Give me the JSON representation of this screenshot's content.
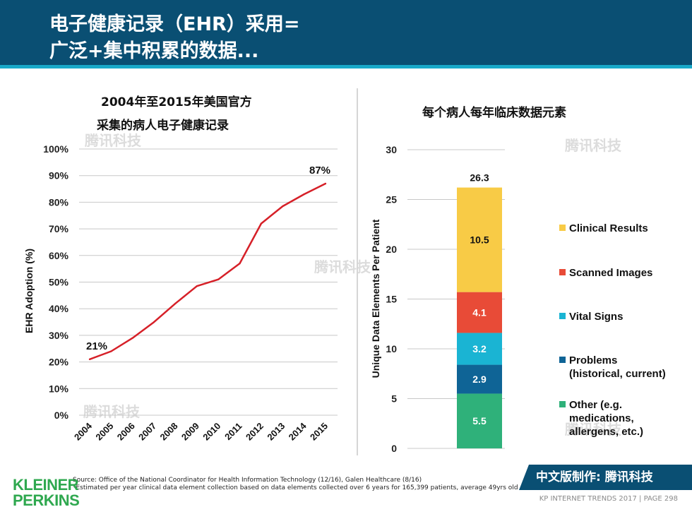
{
  "header": {
    "title_line1": "电子健康记录（EHR）采用=",
    "title_line2": "广泛+集中积累的数据..."
  },
  "left_chart": {
    "title_line1": "2004年至2015年美国官方",
    "title_line2": "采集的病人电子健康记录"
  },
  "right_chart": {
    "title": "每个病人每年临床数据元素"
  },
  "watermark_text": "腾讯科技",
  "chart_data": [
    {
      "type": "line",
      "title": "2004年至2015年美国官方采集的病人电子健康记录",
      "ylabel": "EHR Adoption (%)",
      "xlabel": "",
      "ylim": [
        0,
        100
      ],
      "yticks": [
        "0%",
        "10%",
        "20%",
        "30%",
        "40%",
        "50%",
        "60%",
        "70%",
        "80%",
        "90%",
        "100%"
      ],
      "x": [
        "2004",
        "2005",
        "2006",
        "2007",
        "2008",
        "2009",
        "2010",
        "2011",
        "2012",
        "2013",
        "2014",
        "2015"
      ],
      "series": [
        {
          "values": [
            21,
            24,
            29,
            35,
            42,
            48.5,
            51,
            57,
            72,
            78.5,
            83,
            87
          ],
          "color": "#d62028"
        }
      ],
      "annotations": [
        {
          "label": "21%",
          "x": "2004"
        },
        {
          "label": "87%",
          "x": "2015"
        }
      ],
      "grid": true
    },
    {
      "type": "bar",
      "stacked": true,
      "title": "每个病人每年临床数据元素",
      "ylabel": "Unique Data Elements Per Patient",
      "ylim": [
        0,
        30
      ],
      "yticks": [
        "0",
        "5",
        "10",
        "15",
        "20",
        "25",
        "30"
      ],
      "total_label": "26.3",
      "series": [
        {
          "name": "Other (e.g. medications, allergens, etc.)",
          "value": 5.5,
          "label": "5.5",
          "color": "#2fb17a"
        },
        {
          "name": "Problems (historical, current)",
          "value": 2.9,
          "label": "2.9",
          "color": "#0f6496"
        },
        {
          "name": "Vital Signs",
          "value": 3.2,
          "label": "3.2",
          "color": "#1ab4d3"
        },
        {
          "name": "Scanned Images",
          "value": 4.1,
          "label": "4.1",
          "color": "#e84b37"
        },
        {
          "name": "Clinical Results",
          "value": 10.5,
          "label": "10.5",
          "color": "#f8cb46"
        }
      ],
      "legend": [
        {
          "lines": [
            "Clinical Results"
          ],
          "color": "#f8cb46"
        },
        {
          "lines": [
            "Scanned Images"
          ],
          "color": "#e84b37"
        },
        {
          "lines": [
            "Vital Signs"
          ],
          "color": "#1ab4d3"
        },
        {
          "lines": [
            "Problems",
            "(historical, current)"
          ],
          "color": "#0f6496"
        },
        {
          "lines": [
            "Other (e.g.",
            "medications,",
            "allergens, etc.)"
          ],
          "color": "#2fb17a"
        }
      ],
      "grid": true
    }
  ],
  "source": {
    "line1": "Source: Office of the National Coordinator for Health Information Technology (12/16), Galen Healthcare (8/16)",
    "line2": "*Estimated per year clinical data element collection based on data elements collected over 6 years for 165,399 patients, average 49yrs old"
  },
  "logo": {
    "line1": "KLEINER",
    "line2": "PERKINS"
  },
  "badge": {
    "text": "中文版制作: 腾讯科技"
  },
  "footer": {
    "text": "KP INTERNET TRENDS 2017  |  PAGE 298"
  }
}
